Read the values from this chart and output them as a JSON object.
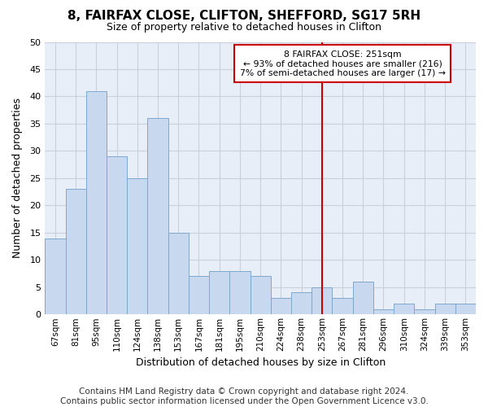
{
  "title": "8, FAIRFAX CLOSE, CLIFTON, SHEFFORD, SG17 5RH",
  "subtitle": "Size of property relative to detached houses in Clifton",
  "xlabel": "Distribution of detached houses by size in Clifton",
  "ylabel": "Number of detached properties",
  "bar_labels": [
    "67sqm",
    "81sqm",
    "95sqm",
    "110sqm",
    "124sqm",
    "138sqm",
    "153sqm",
    "167sqm",
    "181sqm",
    "195sqm",
    "210sqm",
    "224sqm",
    "238sqm",
    "253sqm",
    "267sqm",
    "281sqm",
    "296sqm",
    "310sqm",
    "324sqm",
    "339sqm",
    "353sqm"
  ],
  "bar_values": [
    14,
    23,
    41,
    29,
    25,
    36,
    15,
    7,
    8,
    8,
    7,
    3,
    4,
    5,
    3,
    6,
    1,
    2,
    1,
    2,
    2
  ],
  "bar_color": "#c8d8ee",
  "bar_edge_color": "#7fa8cc",
  "grid_color": "#c8d0dc",
  "background_color": "#ffffff",
  "plot_bg_color": "#e8eef8",
  "vline_x_index": 13,
  "vline_color": "#cc0000",
  "annotation_line1": "8 FAIRFAX CLOSE: 251sqm",
  "annotation_line2": "← 93% of detached houses are smaller (216)",
  "annotation_line3": "7% of semi-detached houses are larger (17) →",
  "annotation_box_color": "#ffffff",
  "annotation_box_edge": "#cc0000",
  "ylim": [
    0,
    50
  ],
  "yticks": [
    0,
    5,
    10,
    15,
    20,
    25,
    30,
    35,
    40,
    45,
    50
  ],
  "footer": "Contains HM Land Registry data © Crown copyright and database right 2024.\nContains public sector information licensed under the Open Government Licence v3.0.",
  "title_fontsize": 11,
  "subtitle_fontsize": 9,
  "footer_fontsize": 7.5
}
